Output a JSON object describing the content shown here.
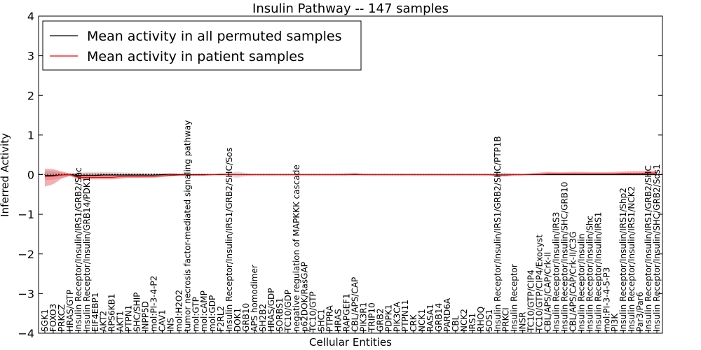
{
  "chart_data": {
    "type": "line",
    "title": "Insulin Pathway -- 147 samples",
    "xlabel": "Cellular Entities",
    "ylabel": "Inferred Activity",
    "ylim": [
      -4,
      4
    ],
    "yticks": [
      -4,
      -3,
      -2,
      -1,
      0,
      1,
      2,
      3,
      4
    ],
    "grid": false,
    "legend_position": "top-left",
    "categories": [
      "SGK1",
      "FOXO3",
      "PRKCZ",
      "HRAS/GTP",
      "Insulin Receptor/Insulin/IRS1/GRB2/Shc",
      "Insulin Receptor/Insulin/GRB14/PDK1",
      "EIF4EBP1",
      "AKT2",
      "RPS6KB1",
      "AKT1",
      "PTPN1",
      "SHC/SHIP",
      "INPP5D",
      "mol:PI-3-4-P2",
      "CAV1",
      "INS",
      "mol:H2O2",
      "tumor necrosis factor-mediated signaling pathway",
      "mol:GTP",
      "mol:cAMP",
      "mol:GDP",
      "F2RL2",
      "Insulin Receptor/Insulin/IRS1/GRB2/SHC/Sos",
      "DOK1",
      "GRB10",
      "APS homodimer",
      "SH2B2",
      "HRAS/GDP",
      "SORBS1",
      "TC10/GDP",
      "negative regulation of MAPKKK cascade",
      "p62DOK/RasGAP",
      "TC10/GTP",
      "SHC1",
      "PTPRA",
      "HRAS",
      "RAPGEF1",
      "CBL/APS/CAP",
      "PIK3R1",
      "TRIP10",
      "GRB2",
      "PDPK1",
      "PIK3CA",
      "PTPN11",
      "CRK",
      "NCK1",
      "RASA1",
      "GRB14",
      "PARD6A",
      "CBL",
      "NCK2",
      "IRS1",
      "RHOQ",
      "SOS1",
      "Insulin Receptor/Insulin/IRS1/GRB2/SHC/PTP1B",
      "PRKCI",
      "Insulin Receptor",
      "INSR",
      "TC10/GTP/CIP4",
      "TC10/GTP/CIP4/Exocyst",
      "CBL/APS/CAP/Crk-II",
      "Insulin Receptor/Insulin/IRS3",
      "Insulin Receptor/Insulin/SHC/GRB10",
      "CBL/APS/CAP/Crk-II/C3G",
      "Insulin Receptor/Insulin",
      "Insulin Receptor/Insulin/Shc",
      "Insulin Receptor/Insulin/IRS1",
      "mol:PI-3-4-5-P3",
      "PI3K",
      "Insulin Receptor/Insulin/IRS1/Shp2",
      "Insulin Receptor/Insulin/IRS1/NCK2",
      "Par3/Par6",
      "Insulin Receptor/Insulin/IRS1/GRB2/SHC",
      "Insulin Receptor/Insulin/SHC/GRB2/Sos1"
    ],
    "series": [
      {
        "name": "Mean activity in all permuted samples",
        "color": "#000000",
        "values": [
          -0.02,
          -0.02,
          -0.01,
          0.0,
          -0.02,
          -0.02,
          -0.02,
          -0.01,
          -0.01,
          -0.01,
          -0.01,
          -0.01,
          -0.01,
          -0.01,
          0.0,
          0.01,
          0.0,
          0.0,
          0.0,
          0.0,
          0.0,
          0.0,
          0.01,
          0.0,
          0.0,
          0.0,
          0.0,
          0.0,
          0.0,
          0.0,
          0.0,
          0.0,
          0.0,
          0.0,
          0.0,
          0.0,
          0.0,
          0.0,
          0.0,
          0.0,
          0.0,
          0.0,
          0.0,
          0.0,
          0.0,
          0.0,
          0.0,
          0.0,
          0.0,
          0.0,
          0.0,
          0.0,
          0.0,
          0.0,
          -0.01,
          -0.01,
          0.0,
          0.0,
          0.0,
          0.0,
          0.0,
          0.0,
          0.0,
          0.0,
          0.0,
          0.0,
          0.0,
          0.0,
          0.0,
          0.0,
          0.0,
          0.0,
          0.0,
          0.0
        ],
        "lower": [
          -0.14,
          -0.13,
          -0.08,
          -0.04,
          -0.1,
          -0.1,
          -0.1,
          -0.1,
          -0.1,
          -0.09,
          -0.08,
          -0.08,
          -0.07,
          -0.06,
          -0.04,
          -0.02,
          -0.02,
          -0.01,
          -0.01,
          -0.01,
          -0.01,
          -0.02,
          -0.06,
          -0.08,
          -0.04,
          -0.02,
          -0.02,
          -0.02,
          -0.02,
          -0.02,
          -0.02,
          -0.02,
          -0.02,
          -0.02,
          -0.02,
          -0.02,
          -0.02,
          -0.02,
          -0.02,
          -0.02,
          -0.02,
          -0.02,
          -0.02,
          -0.02,
          -0.02,
          -0.02,
          -0.02,
          -0.02,
          -0.02,
          -0.02,
          -0.02,
          -0.02,
          -0.02,
          -0.02,
          -0.07,
          -0.06,
          -0.03,
          -0.02,
          -0.02,
          -0.02,
          -0.02,
          -0.02,
          -0.02,
          -0.02,
          -0.02,
          -0.02,
          -0.02,
          -0.02,
          -0.02,
          -0.02,
          -0.02,
          -0.02,
          -0.02,
          -0.02
        ],
        "upper": [
          0.1,
          0.09,
          0.06,
          0.03,
          0.06,
          0.07,
          0.07,
          0.07,
          0.06,
          0.06,
          0.05,
          0.05,
          0.04,
          0.04,
          0.03,
          0.04,
          0.03,
          0.01,
          0.01,
          0.01,
          0.01,
          0.02,
          0.06,
          0.08,
          0.04,
          0.02,
          0.02,
          0.02,
          0.02,
          0.02,
          0.02,
          0.02,
          0.02,
          0.02,
          0.02,
          0.02,
          0.02,
          0.02,
          0.02,
          0.02,
          0.02,
          0.02,
          0.02,
          0.02,
          0.02,
          0.02,
          0.02,
          0.02,
          0.02,
          0.02,
          0.02,
          0.02,
          0.02,
          0.02,
          0.05,
          0.05,
          0.03,
          0.02,
          0.02,
          0.02,
          0.02,
          0.02,
          0.02,
          0.02,
          0.02,
          0.02,
          0.02,
          0.02,
          0.02,
          0.02,
          0.02,
          0.02,
          0.02,
          0.02
        ]
      },
      {
        "name": "Mean activity in patient samples",
        "color": "#ff0000",
        "values": [
          -0.05,
          -0.04,
          -0.01,
          0.0,
          -0.07,
          -0.07,
          -0.07,
          -0.07,
          -0.07,
          -0.05,
          -0.04,
          -0.04,
          -0.04,
          -0.04,
          -0.03,
          -0.02,
          -0.01,
          -0.01,
          -0.01,
          -0.01,
          0.0,
          0.01,
          0.0,
          0.0,
          0.0,
          0.0,
          0.0,
          0.0,
          0.0,
          0.0,
          0.0,
          0.0,
          0.0,
          0.0,
          0.0,
          0.0,
          0.0,
          0.01,
          0.0,
          0.0,
          0.0,
          0.0,
          0.0,
          0.0,
          0.0,
          0.0,
          0.0,
          0.0,
          0.0,
          0.0,
          0.0,
          0.0,
          0.0,
          0.0,
          0.0,
          0.0,
          0.0,
          0.0,
          0.01,
          0.01,
          0.02,
          0.02,
          0.02,
          0.02,
          0.02,
          0.02,
          0.02,
          0.02,
          0.02,
          0.03,
          0.03,
          0.03,
          0.04,
          0.04
        ],
        "lower": [
          -0.3,
          -0.24,
          -0.1,
          -0.03,
          -0.12,
          -0.12,
          -0.12,
          -0.12,
          -0.12,
          -0.1,
          -0.08,
          -0.08,
          -0.08,
          -0.08,
          -0.06,
          -0.04,
          -0.02,
          -0.02,
          -0.02,
          -0.02,
          -0.01,
          -0.01,
          -0.01,
          -0.01,
          -0.01,
          -0.01,
          -0.01,
          -0.01,
          -0.01,
          -0.01,
          -0.01,
          -0.01,
          -0.01,
          -0.01,
          -0.01,
          -0.01,
          -0.01,
          -0.01,
          -0.01,
          -0.01,
          -0.01,
          -0.01,
          -0.01,
          -0.01,
          -0.01,
          -0.01,
          -0.01,
          -0.01,
          -0.01,
          -0.01,
          -0.01,
          -0.01,
          -0.01,
          -0.01,
          -0.01,
          -0.01,
          -0.01,
          -0.01,
          0.0,
          0.0,
          0.0,
          0.0,
          0.0,
          0.0,
          0.0,
          0.0,
          0.0,
          0.0,
          0.0,
          0.0,
          0.0,
          0.0,
          0.0,
          0.0
        ],
        "upper": [
          0.15,
          0.14,
          0.08,
          0.03,
          0.02,
          0.03,
          0.03,
          0.03,
          0.02,
          0.01,
          0.01,
          0.01,
          0.0,
          0.0,
          0.0,
          0.0,
          0.0,
          0.01,
          0.01,
          0.01,
          0.01,
          0.03,
          0.01,
          0.01,
          0.01,
          0.01,
          0.01,
          0.01,
          0.01,
          0.01,
          0.01,
          0.01,
          0.01,
          0.01,
          0.01,
          0.02,
          0.03,
          0.04,
          0.02,
          0.01,
          0.01,
          0.01,
          0.01,
          0.01,
          0.01,
          0.01,
          0.01,
          0.01,
          0.01,
          0.01,
          0.01,
          0.01,
          0.01,
          0.01,
          0.01,
          0.01,
          0.01,
          0.01,
          0.03,
          0.05,
          0.07,
          0.06,
          0.06,
          0.07,
          0.07,
          0.06,
          0.06,
          0.06,
          0.07,
          0.08,
          0.09,
          0.09,
          0.1,
          0.1
        ]
      }
    ]
  }
}
